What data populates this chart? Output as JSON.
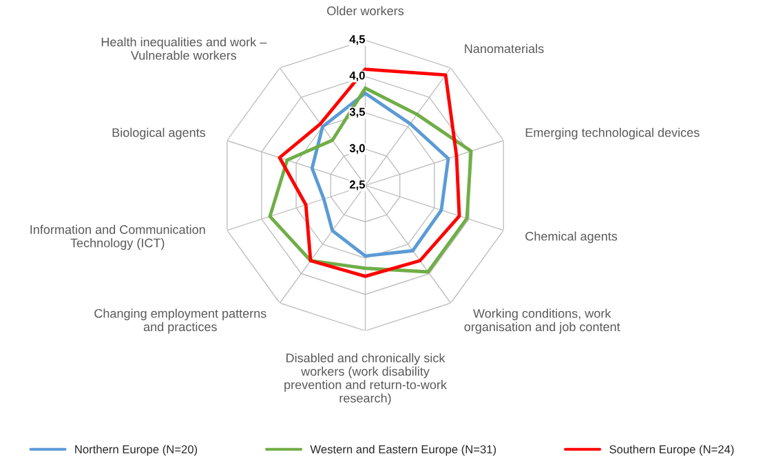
{
  "chart_data": {
    "type": "radar",
    "categories": [
      "Older workers",
      "Nanomaterials",
      "Emerging technological devices",
      "Chemical agents",
      "Working conditions, work\norganisation and job content",
      "Disabled and chronically sick\nworkers (work disability\nprevention and return-to-work\nresearch)",
      "Changing employment patterns\nand practices",
      "Information and Communication\nTechnology (ICT)",
      "Biological agents",
      "Health inequalities and work –\nVulnerable workers"
    ],
    "series": [
      {
        "name": "Northern Europe (N=20)",
        "color": "#5b9bd5",
        "values": [
          3.77,
          3.55,
          3.7,
          3.6,
          3.61,
          3.47,
          3.27,
          3.1,
          3.27,
          3.5
        ]
      },
      {
        "name": "Western and Eastern Europe (N=31)",
        "color": "#70ad47",
        "values": [
          3.84,
          3.71,
          4.03,
          3.97,
          3.97,
          3.64,
          3.78,
          3.88,
          3.63,
          3.27
        ]
      },
      {
        "name": "Southern Europe (N=24)",
        "color": "#ff0000",
        "values": [
          4.1,
          4.38,
          3.82,
          3.86,
          3.78,
          3.75,
          3.78,
          3.36,
          3.74,
          3.55
        ]
      }
    ],
    "ylim": [
      2.5,
      4.5
    ],
    "yticks": [
      {
        "value": 2.5,
        "label": "2,5"
      },
      {
        "value": 3.0,
        "label": "3,0"
      },
      {
        "value": 3.5,
        "label": "3,5"
      },
      {
        "value": 4.0,
        "label": "4,0"
      },
      {
        "value": 4.5,
        "label": "4,5"
      }
    ],
    "grid": true,
    "legend": "bottom"
  }
}
